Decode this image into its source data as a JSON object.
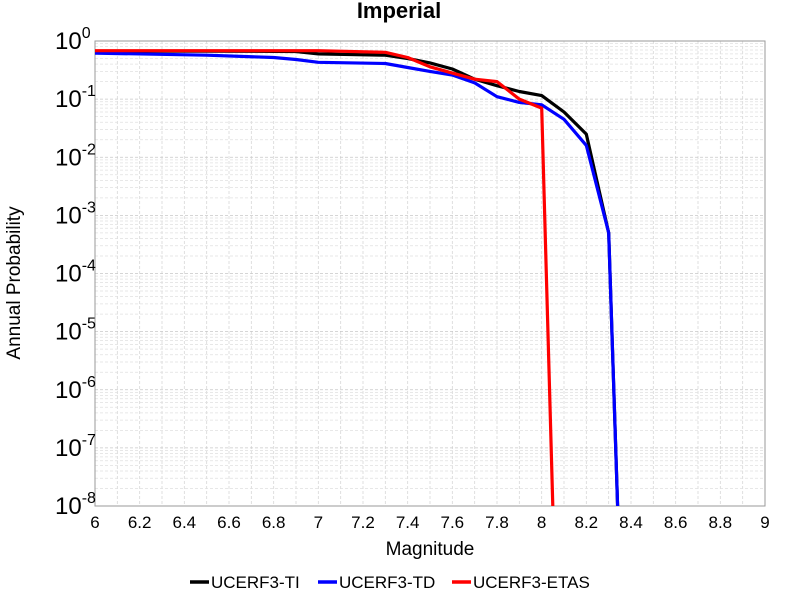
{
  "chart_data": {
    "type": "line",
    "title": "Imperial",
    "xlabel": "Magnitude",
    "ylabel": "Annual Probability",
    "xlim": [
      6,
      9
    ],
    "ylim": [
      1e-08,
      1
    ],
    "yscale": "log",
    "grid": true,
    "legend_position": "bottom",
    "x_ticks": [
      "6",
      "6.2",
      "6.4",
      "6.6",
      "6.8",
      "7",
      "7.2",
      "7.4",
      "7.6",
      "7.8",
      "8",
      "8.2",
      "8.4",
      "8.6",
      "8.8",
      "9"
    ],
    "y_ticks": [
      {
        "base": "10",
        "exp": "0",
        "value": 1
      },
      {
        "base": "10",
        "exp": "-1",
        "value": 0.1
      },
      {
        "base": "10",
        "exp": "-2",
        "value": 0.01
      },
      {
        "base": "10",
        "exp": "-3",
        "value": 0.001
      },
      {
        "base": "10",
        "exp": "-4",
        "value": 0.0001
      },
      {
        "base": "10",
        "exp": "-5",
        "value": 1e-05
      },
      {
        "base": "10",
        "exp": "-6",
        "value": 1e-06
      },
      {
        "base": "10",
        "exp": "-7",
        "value": 1e-07
      },
      {
        "base": "10",
        "exp": "-8",
        "value": 1e-08
      }
    ],
    "series": [
      {
        "name": "UCERF3-TI",
        "color": "#000000",
        "x": [
          6.0,
          6.5,
          6.9,
          7.0,
          7.3,
          7.4,
          7.5,
          7.6,
          7.7,
          7.8,
          7.9,
          8.0,
          8.1,
          8.2,
          8.3,
          8.34
        ],
        "y": [
          0.67,
          0.67,
          0.66,
          0.6,
          0.57,
          0.5,
          0.42,
          0.33,
          0.22,
          0.17,
          0.135,
          0.115,
          0.06,
          0.025,
          0.0005,
          1e-08
        ]
      },
      {
        "name": "UCERF3-TD",
        "color": "#0000ff",
        "x": [
          6.0,
          6.5,
          6.8,
          6.9,
          7.0,
          7.3,
          7.4,
          7.5,
          7.6,
          7.7,
          7.8,
          7.9,
          8.0,
          8.1,
          8.2,
          8.3,
          8.34
        ],
        "y": [
          0.62,
          0.57,
          0.52,
          0.48,
          0.43,
          0.41,
          0.35,
          0.3,
          0.26,
          0.19,
          0.11,
          0.088,
          0.08,
          0.045,
          0.016,
          0.0005,
          1e-08
        ]
      },
      {
        "name": "UCERF3-ETAS",
        "color": "#ff0000",
        "x": [
          6.0,
          7.0,
          7.3,
          7.4,
          7.5,
          7.6,
          7.7,
          7.8,
          7.9,
          8.0,
          8.05
        ],
        "y": [
          0.68,
          0.68,
          0.64,
          0.52,
          0.36,
          0.28,
          0.22,
          0.2,
          0.1,
          0.07,
          1e-08
        ]
      }
    ]
  }
}
